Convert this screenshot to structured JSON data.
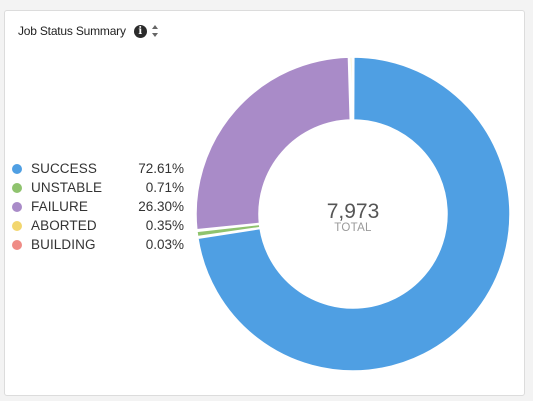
{
  "widget": {
    "title": "Job Status Summary",
    "info_icon": "info-icon",
    "sort_icon": "sort-icon"
  },
  "center": {
    "total": "7,973",
    "label": "TOTAL"
  },
  "chart_data": {
    "type": "pie",
    "categories": [
      "SUCCESS",
      "UNSTABLE",
      "FAILURE",
      "ABORTED",
      "BUILDING"
    ],
    "values": [
      72.61,
      0.71,
      26.3,
      0.35,
      0.03
    ],
    "labels": [
      "72.61%",
      "0.71%",
      "26.30%",
      "0.35%",
      "0.03%"
    ],
    "colors": [
      "#4f9fe3",
      "#8fc36e",
      "#a98bc8",
      "#f2d66e",
      "#ef8c86"
    ],
    "legend_position": "left"
  }
}
